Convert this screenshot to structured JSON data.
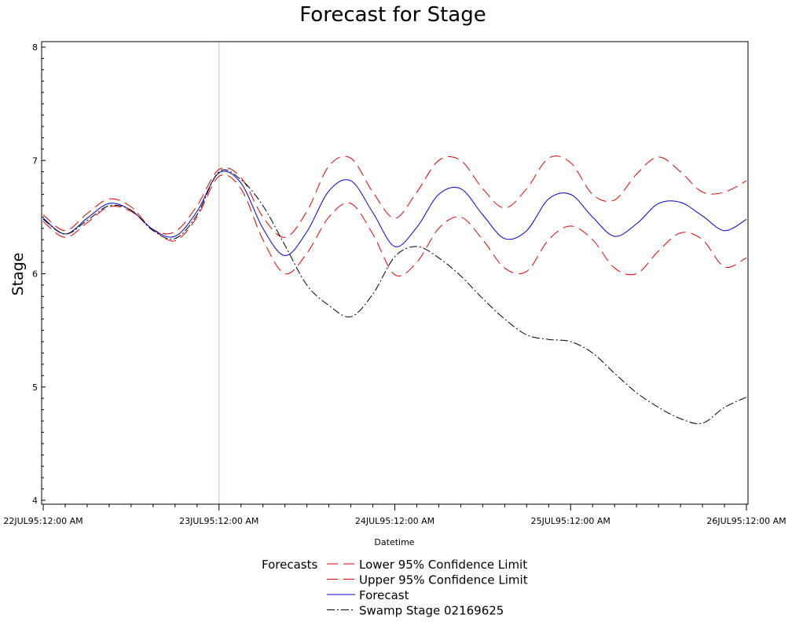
{
  "chart_data": {
    "type": "line",
    "title": "Forecast for Stage",
    "xlabel": "Datetime",
    "ylabel": "Stage",
    "xlim": [
      "1995-07-22T00:00",
      "1995-07-26T00:00"
    ],
    "ylim": [
      4,
      8
    ],
    "x_ticks": [
      {
        "value": "1995-07-22T00:00",
        "label": "22JUL95:12:00 AM"
      },
      {
        "value": "1995-07-23T00:00",
        "label": "23JUL95:12:00 AM"
      },
      {
        "value": "1995-07-24T00:00",
        "label": "24JUL95:12:00 AM"
      },
      {
        "value": "1995-07-25T00:00",
        "label": "25JUL95:12:00 AM"
      },
      {
        "value": "1995-07-26T00:00",
        "label": "26JUL95:12:00 AM"
      }
    ],
    "y_ticks": [
      4,
      5,
      6,
      7,
      8
    ],
    "reference_line": {
      "x": "1995-07-23T00:00",
      "color": "#a3d9a3"
    },
    "grid": false,
    "legend": {
      "title": "Forecasts",
      "placement": "bottom-center"
    },
    "series": [
      {
        "name": "Lower 95% Confidence Limit",
        "color": "#e00000",
        "dash": "long-dash",
        "points": [
          [
            "1995-07-22T00:00",
            6.46
          ],
          [
            "1995-07-22T03:00",
            6.32
          ],
          [
            "1995-07-22T06:00",
            6.45
          ],
          [
            "1995-07-22T09:00",
            6.59
          ],
          [
            "1995-07-22T12:00",
            6.55
          ],
          [
            "1995-07-22T15:00",
            6.39
          ],
          [
            "1995-07-22T18:00",
            6.29
          ],
          [
            "1995-07-22T21:00",
            6.5
          ],
          [
            "1995-07-23T00:00",
            6.86
          ],
          [
            "1995-07-23T03:00",
            6.75
          ],
          [
            "1995-07-23T06:00",
            6.3
          ],
          [
            "1995-07-23T09:00",
            6.0
          ],
          [
            "1995-07-23T12:00",
            6.18
          ],
          [
            "1995-07-23T15:00",
            6.5
          ],
          [
            "1995-07-23T18:00",
            6.62
          ],
          [
            "1995-07-23T21:00",
            6.35
          ],
          [
            "1995-07-24T00:00",
            5.99
          ],
          [
            "1995-07-24T03:00",
            6.1
          ],
          [
            "1995-07-24T06:00",
            6.4
          ],
          [
            "1995-07-24T09:00",
            6.5
          ],
          [
            "1995-07-24T12:00",
            6.3
          ],
          [
            "1995-07-24T15:00",
            6.05
          ],
          [
            "1995-07-24T18:00",
            6.02
          ],
          [
            "1995-07-24T21:00",
            6.3
          ],
          [
            "1995-07-25T00:00",
            6.42
          ],
          [
            "1995-07-25T03:00",
            6.3
          ],
          [
            "1995-07-25T06:00",
            6.05
          ],
          [
            "1995-07-25T09:00",
            6.0
          ],
          [
            "1995-07-25T12:00",
            6.2
          ],
          [
            "1995-07-25T15:00",
            6.36
          ],
          [
            "1995-07-25T18:00",
            6.3
          ],
          [
            "1995-07-25T21:00",
            6.06
          ],
          [
            "1995-07-26T00:00",
            6.14
          ]
        ]
      },
      {
        "name": "Upper 95% Confidence Limit",
        "color": "#e00000",
        "dash": "long-dash",
        "points": [
          [
            "1995-07-22T00:00",
            6.52
          ],
          [
            "1995-07-22T03:00",
            6.38
          ],
          [
            "1995-07-22T06:00",
            6.53
          ],
          [
            "1995-07-22T09:00",
            6.66
          ],
          [
            "1995-07-22T12:00",
            6.59
          ],
          [
            "1995-07-22T15:00",
            6.39
          ],
          [
            "1995-07-22T18:00",
            6.37
          ],
          [
            "1995-07-22T21:00",
            6.6
          ],
          [
            "1995-07-23T00:00",
            6.92
          ],
          [
            "1995-07-23T03:00",
            6.85
          ],
          [
            "1995-07-23T06:00",
            6.5
          ],
          [
            "1995-07-23T09:00",
            6.32
          ],
          [
            "1995-07-23T12:00",
            6.55
          ],
          [
            "1995-07-23T15:00",
            6.95
          ],
          [
            "1995-07-23T18:00",
            7.02
          ],
          [
            "1995-07-23T21:00",
            6.72
          ],
          [
            "1995-07-24T00:00",
            6.49
          ],
          [
            "1995-07-24T03:00",
            6.72
          ],
          [
            "1995-07-24T06:00",
            7.0
          ],
          [
            "1995-07-24T09:00",
            7.0
          ],
          [
            "1995-07-24T12:00",
            6.75
          ],
          [
            "1995-07-24T15:00",
            6.58
          ],
          [
            "1995-07-24T18:00",
            6.75
          ],
          [
            "1995-07-24T21:00",
            7.02
          ],
          [
            "1995-07-25T00:00",
            6.98
          ],
          [
            "1995-07-25T03:00",
            6.7
          ],
          [
            "1995-07-25T06:00",
            6.65
          ],
          [
            "1995-07-25T09:00",
            6.88
          ],
          [
            "1995-07-25T12:00",
            7.03
          ],
          [
            "1995-07-25T15:00",
            6.9
          ],
          [
            "1995-07-25T18:00",
            6.72
          ],
          [
            "1995-07-25T21:00",
            6.72
          ],
          [
            "1995-07-26T00:00",
            6.82
          ]
        ]
      },
      {
        "name": "Forecast",
        "color": "#0000d0",
        "dash": "solid",
        "points": [
          [
            "1995-07-22T00:00",
            6.49
          ],
          [
            "1995-07-22T03:00",
            6.35
          ],
          [
            "1995-07-22T06:00",
            6.49
          ],
          [
            "1995-07-22T09:00",
            6.62
          ],
          [
            "1995-07-22T12:00",
            6.56
          ],
          [
            "1995-07-22T15:00",
            6.39
          ],
          [
            "1995-07-22T18:00",
            6.33
          ],
          [
            "1995-07-22T21:00",
            6.55
          ],
          [
            "1995-07-23T00:00",
            6.89
          ],
          [
            "1995-07-23T03:00",
            6.8
          ],
          [
            "1995-07-23T06:00",
            6.4
          ],
          [
            "1995-07-23T09:00",
            6.16
          ],
          [
            "1995-07-23T12:00",
            6.37
          ],
          [
            "1995-07-23T15:00",
            6.73
          ],
          [
            "1995-07-23T18:00",
            6.82
          ],
          [
            "1995-07-23T21:00",
            6.54
          ],
          [
            "1995-07-24T00:00",
            6.24
          ],
          [
            "1995-07-24T03:00",
            6.41
          ],
          [
            "1995-07-24T06:00",
            6.7
          ],
          [
            "1995-07-24T09:00",
            6.75
          ],
          [
            "1995-07-24T12:00",
            6.52
          ],
          [
            "1995-07-24T15:00",
            6.31
          ],
          [
            "1995-07-24T18:00",
            6.38
          ],
          [
            "1995-07-24T21:00",
            6.66
          ],
          [
            "1995-07-25T00:00",
            6.7
          ],
          [
            "1995-07-25T03:00",
            6.5
          ],
          [
            "1995-07-25T06:00",
            6.33
          ],
          [
            "1995-07-25T09:00",
            6.44
          ],
          [
            "1995-07-25T12:00",
            6.62
          ],
          [
            "1995-07-25T15:00",
            6.63
          ],
          [
            "1995-07-25T18:00",
            6.51
          ],
          [
            "1995-07-25T21:00",
            6.38
          ],
          [
            "1995-07-26T00:00",
            6.48
          ]
        ]
      },
      {
        "name": "Swamp Stage 02169625",
        "color": "#000000",
        "dash": "long-dash-dot",
        "points": [
          [
            "1995-07-22T00:00",
            6.48
          ],
          [
            "1995-07-22T03:00",
            6.35
          ],
          [
            "1995-07-22T06:00",
            6.47
          ],
          [
            "1995-07-22T09:00",
            6.6
          ],
          [
            "1995-07-22T12:00",
            6.56
          ],
          [
            "1995-07-22T15:00",
            6.38
          ],
          [
            "1995-07-22T18:00",
            6.31
          ],
          [
            "1995-07-22T21:00",
            6.52
          ],
          [
            "1995-07-23T00:00",
            6.9
          ],
          [
            "1995-07-23T03:00",
            6.83
          ],
          [
            "1995-07-23T06:00",
            6.6
          ],
          [
            "1995-07-23T09:00",
            6.25
          ],
          [
            "1995-07-23T12:00",
            5.9
          ],
          [
            "1995-07-23T15:00",
            5.72
          ],
          [
            "1995-07-23T18:00",
            5.62
          ],
          [
            "1995-07-23T21:00",
            5.82
          ],
          [
            "1995-07-24T00:00",
            6.15
          ],
          [
            "1995-07-24T03:00",
            6.24
          ],
          [
            "1995-07-24T06:00",
            6.14
          ],
          [
            "1995-07-24T09:00",
            5.98
          ],
          [
            "1995-07-24T12:00",
            5.78
          ],
          [
            "1995-07-24T15:00",
            5.6
          ],
          [
            "1995-07-24T18:00",
            5.46
          ],
          [
            "1995-07-24T21:00",
            5.42
          ],
          [
            "1995-07-25T00:00",
            5.4
          ],
          [
            "1995-07-25T03:00",
            5.3
          ],
          [
            "1995-07-25T06:00",
            5.12
          ],
          [
            "1995-07-25T09:00",
            4.95
          ],
          [
            "1995-07-25T12:00",
            4.82
          ],
          [
            "1995-07-25T15:00",
            4.72
          ],
          [
            "1995-07-25T18:00",
            4.68
          ],
          [
            "1995-07-25T21:00",
            4.82
          ],
          [
            "1995-07-26T00:00",
            4.91
          ]
        ]
      }
    ]
  }
}
